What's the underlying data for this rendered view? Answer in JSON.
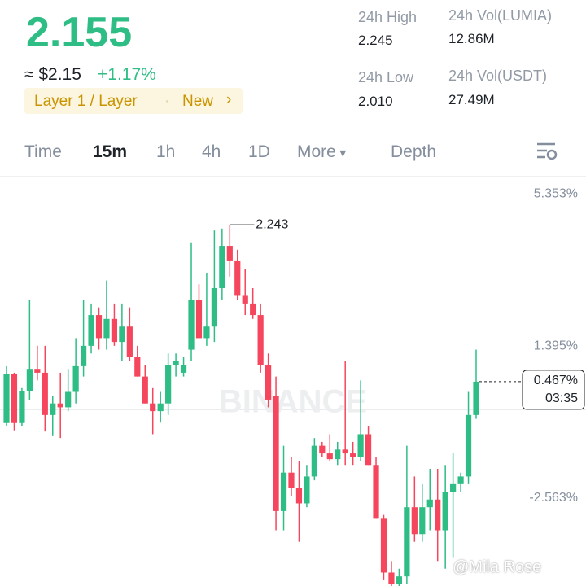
{
  "header": {
    "price": "2.155",
    "fiat": "≈ $2.15",
    "change": "+1.17%",
    "tag": "Layer 1 / Layer",
    "tag_badge": "New"
  },
  "stats": [
    {
      "label": "24h High",
      "value": "2.245"
    },
    {
      "label": "24h Vol(LUMIA)",
      "value": "12.86M"
    },
    {
      "label": "24h Low",
      "value": "2.010"
    },
    {
      "label": "24h Vol(USDT)",
      "value": "27.49M"
    }
  ],
  "tabs": [
    "Time",
    "15m",
    "1h",
    "4h",
    "1D",
    "More",
    "Depth"
  ],
  "active_tab": 1,
  "chart_data": {
    "type": "candlestick",
    "ylim": [
      -4.85,
      5.78
    ],
    "yticks": [
      {
        "value": -2.563,
        "label": "-2.563%"
      },
      {
        "value": 1.395,
        "label": "1.395%"
      },
      {
        "value": 5.353,
        "label": "5.353%"
      }
    ],
    "up_color": "#2ebd85",
    "down_color": "#f6465d",
    "open": [
      -0.61,
      0.66,
      -0.61,
      0.23,
      0.8,
      0.7,
      -0.4,
      -0.1,
      -0.2,
      0.2,
      0.87,
      1.4,
      2.2,
      1.6,
      2.1,
      1.5,
      1.9,
      1.1,
      0.6,
      -0.1,
      -0.3,
      -0.1,
      0.9,
      0.7,
      1.3,
      2.6,
      1.6,
      1.9,
      2.9,
      4.0,
      3.6,
      2.7,
      2.5,
      2.2,
      0.9,
      0.1,
      -2.9,
      -1.9,
      -2.3,
      -2.7,
      -2.0,
      -1.2,
      -1.4,
      -1.55,
      -1.3,
      -1.4,
      -1.5,
      -0.9,
      -1.7,
      -3.1,
      -4.5,
      -4.8,
      -4.6,
      -2.8,
      -3.5,
      -2.8,
      -2.6,
      -3.4,
      -2.4,
      -2.2,
      -2.0,
      -0.4
    ],
    "high": [
      0.87,
      0.7,
      0.3,
      2.6,
      1.4,
      1.4,
      0.1,
      0.7,
      0.8,
      1.6,
      2.6,
      2.5,
      2.4,
      3.1,
      2.5,
      2.5,
      2.4,
      1.4,
      0.9,
      0.3,
      0.2,
      1.2,
      1.2,
      1.1,
      4.09,
      3.0,
      3.3,
      4.4,
      4.45,
      4.55,
      3.9,
      3.4,
      2.9,
      2.5,
      1.2,
      0.6,
      -1.2,
      -1.5,
      -1.6,
      -1.7,
      -1.0,
      -1.1,
      -0.9,
      -1.1,
      1.0,
      -1.1,
      0.5,
      -0.7,
      -1.5,
      -3.0,
      -4.2,
      -4.4,
      -1.2,
      -2.0,
      -2.2,
      -1.8,
      -1.8,
      -1.7,
      -1.4,
      -1.9,
      0.2,
      1.3
    ],
    "low": [
      -0.7,
      -0.8,
      -0.7,
      0.0,
      0.5,
      -0.83,
      -0.95,
      -1.0,
      -0.3,
      -0.1,
      0.6,
      1.2,
      1.3,
      1.3,
      1.4,
      1.0,
      1.0,
      0.6,
      -0.1,
      -0.9,
      -0.6,
      -0.4,
      0.6,
      0.6,
      1.0,
      1.6,
      1.4,
      1.5,
      2.6,
      3.2,
      2.6,
      2.2,
      2.1,
      0.7,
      -0.2,
      -3.4,
      -3.4,
      -2.5,
      -3.7,
      -2.8,
      -2.1,
      -1.5,
      -1.6,
      -1.7,
      -1.7,
      -1.7,
      -1.6,
      -1.7,
      -3.1,
      -4.7,
      -4.85,
      -4.85,
      -4.8,
      -3.7,
      -3.7,
      -3.4,
      -4.2,
      -4.4,
      -4.1,
      -2.4,
      -2.2,
      -0.5
    ],
    "close": [
      0.66,
      -0.61,
      0.23,
      0.8,
      0.7,
      -0.4,
      -0.1,
      -0.2,
      0.2,
      0.87,
      1.4,
      2.2,
      1.6,
      2.1,
      1.5,
      1.9,
      1.1,
      0.6,
      -0.1,
      -0.3,
      -0.1,
      0.9,
      1.0,
      0.9,
      2.6,
      1.6,
      1.9,
      2.9,
      4.0,
      3.6,
      2.7,
      2.5,
      2.2,
      0.9,
      0.0,
      -2.9,
      -1.9,
      -2.3,
      -2.7,
      -2.0,
      -1.2,
      -1.4,
      -1.55,
      -1.3,
      -1.4,
      -1.5,
      -0.9,
      -1.7,
      -3.1,
      -4.5,
      -4.8,
      -4.6,
      -2.8,
      -3.5,
      -2.8,
      -2.6,
      -3.4,
      -2.4,
      -2.2,
      -2.0,
      -0.4,
      0.467
    ],
    "high_label": "2.243",
    "last_value_label": "0.467%",
    "countdown": "03:35",
    "watermark": "BINANCE"
  },
  "credit": "@Mila Rose"
}
